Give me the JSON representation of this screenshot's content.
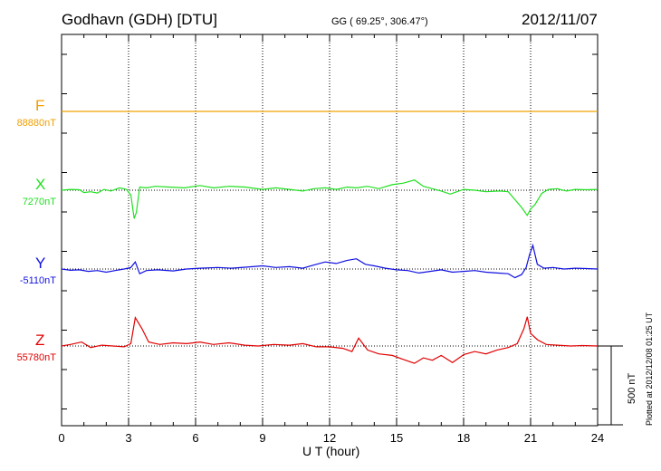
{
  "header": {
    "station": "Godhavn (GDH)  [DTU]",
    "coords": "GG ( 69.25°, 306.47°)",
    "date": "2012/11/07"
  },
  "plotted": "Plotted at 2012/12/08 01:25 UT",
  "scale_bar": {
    "label": "500 nT",
    "value_nT": 500
  },
  "chart_data": {
    "type": "line",
    "xlabel": "U T (hour)",
    "xlim": [
      0,
      24
    ],
    "x_ticks": [
      "0",
      "3",
      "6",
      "9",
      "12",
      "15",
      "18",
      "21",
      "24"
    ],
    "grid": "dotted verticals every 3 h; dotted baseline per component",
    "scale_nT_per_div": 500,
    "series": [
      {
        "name": "F",
        "baseline": "88880nT",
        "color": "#f0a000",
        "x": [
          0,
          24
        ],
        "y": [
          0,
          0
        ]
      },
      {
        "name": "X",
        "baseline": "7270nT",
        "color": "#20e020",
        "x": [
          0,
          0.4,
          0.8,
          1.0,
          1.3,
          1.6,
          1.9,
          2.2,
          2.6,
          2.9,
          3.1,
          3.25,
          3.35,
          3.5,
          3.8,
          4.2,
          4.8,
          5.5,
          6.2,
          6.8,
          7.5,
          8.2,
          9,
          9.6,
          10.2,
          10.8,
          11.3,
          11.8,
          12.3,
          12.8,
          13.2,
          13.7,
          14.2,
          14.8,
          15.3,
          15.8,
          16.2,
          16.6,
          17.0,
          17.4,
          17.7,
          18.0,
          18.5,
          19.0,
          19.6,
          20.0,
          20.3,
          20.6,
          20.85,
          21.0,
          21.2,
          21.5,
          21.8,
          22.2,
          22.6,
          23,
          23.5,
          24
        ],
        "y": [
          0,
          5,
          3,
          -15,
          -10,
          -18,
          5,
          -5,
          15,
          5,
          -30,
          -180,
          -140,
          20,
          15,
          25,
          20,
          15,
          30,
          15,
          25,
          20,
          5,
          15,
          5,
          -5,
          10,
          15,
          5,
          20,
          15,
          25,
          10,
          35,
          45,
          65,
          25,
          10,
          -5,
          -25,
          -10,
          5,
          0,
          -10,
          -5,
          -10,
          -60,
          -110,
          -160,
          -120,
          -90,
          -20,
          5,
          10,
          -5,
          5,
          3,
          5
        ]
      },
      {
        "name": "Y",
        "baseline": "-5110nT",
        "color": "#1010e0",
        "x": [
          0,
          0.4,
          0.8,
          1.2,
          1.6,
          2.0,
          2.4,
          2.8,
          3.1,
          3.3,
          3.5,
          3.8,
          4.3,
          5,
          5.6,
          6.2,
          7,
          7.6,
          8.3,
          9,
          9.6,
          10.2,
          10.8,
          11.3,
          11.8,
          12.3,
          12.8,
          13.2,
          13.6,
          14,
          14.5,
          15,
          15.5,
          16,
          16.5,
          17,
          17.5,
          18,
          18.5,
          19,
          19.5,
          20,
          20.3,
          20.6,
          20.8,
          20.95,
          21.1,
          21.3,
          21.6,
          22,
          22.5,
          23,
          23.5,
          24
        ],
        "y": [
          0,
          -8,
          -5,
          -15,
          -10,
          -20,
          -10,
          0,
          10,
          45,
          -30,
          -10,
          -5,
          -12,
          0,
          5,
          10,
          5,
          12,
          20,
          10,
          15,
          5,
          25,
          45,
          35,
          55,
          65,
          30,
          20,
          5,
          -5,
          -10,
          -25,
          -15,
          -5,
          -20,
          -15,
          -10,
          -20,
          -25,
          -30,
          -55,
          -35,
          10,
          90,
          150,
          30,
          5,
          10,
          0,
          5,
          3,
          0
        ]
      },
      {
        "name": "Z",
        "baseline": "55780nT",
        "color": "#e00000",
        "x": [
          0,
          0.4,
          0.9,
          1.3,
          1.8,
          2.3,
          2.8,
          3.1,
          3.3,
          3.6,
          3.9,
          4.4,
          5,
          5.6,
          6.2,
          6.8,
          7.5,
          8.2,
          8.8,
          9.5,
          10.2,
          10.8,
          11.4,
          12,
          12.6,
          13.0,
          13.3,
          13.7,
          14.2,
          14.8,
          15.3,
          15.8,
          16.2,
          16.6,
          17.0,
          17.5,
          18,
          18.5,
          19,
          19.5,
          20,
          20.4,
          20.7,
          20.85,
          21.0,
          21.3,
          21.7,
          22.2,
          22.8,
          23.3,
          24
        ],
        "y": [
          0,
          10,
          25,
          -10,
          5,
          0,
          -5,
          15,
          180,
          110,
          25,
          10,
          20,
          15,
          25,
          10,
          20,
          5,
          0,
          10,
          5,
          15,
          -5,
          -5,
          -15,
          -35,
          50,
          -25,
          -50,
          -60,
          -85,
          -110,
          -75,
          -90,
          -60,
          -105,
          -55,
          -35,
          -50,
          -25,
          -10,
          15,
          110,
          185,
          80,
          40,
          10,
          5,
          0,
          3,
          0
        ]
      }
    ]
  }
}
